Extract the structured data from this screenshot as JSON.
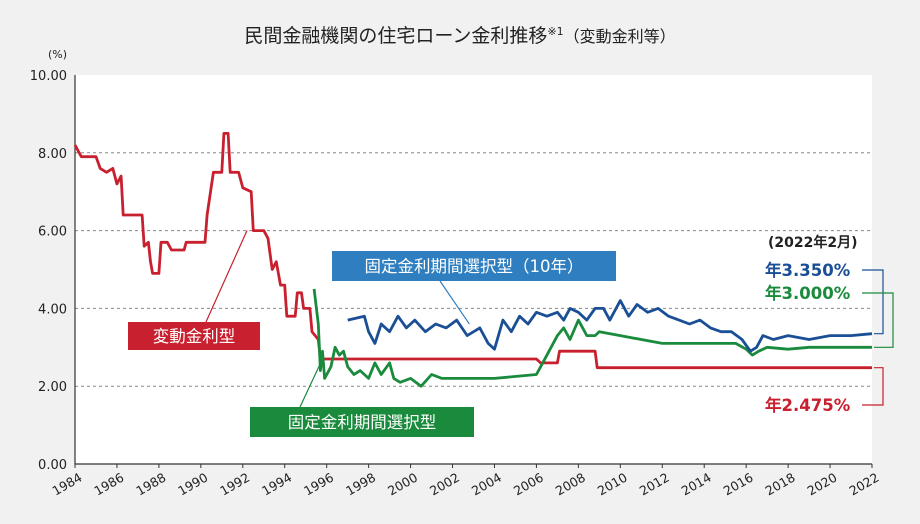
{
  "chart_data": {
    "type": "line",
    "title": "民間金融機関の住宅ローン金利推移",
    "title_note": "※1",
    "title_suffix": "（変動金利等）",
    "ylabel": "(%)",
    "ylim": [
      0,
      10
    ],
    "yticks": [
      "0.00",
      "2.00",
      "4.00",
      "6.00",
      "8.00",
      "10.00"
    ],
    "xlim": [
      1984,
      2022
    ],
    "xticks": [
      "1984",
      "1986",
      "1988",
      "1990",
      "1992",
      "1994",
      "1996",
      "1998",
      "2000",
      "2002",
      "2004",
      "2006",
      "2008",
      "2010",
      "2012",
      "2014",
      "2016",
      "2018",
      "2020",
      "2022"
    ],
    "grid": true,
    "date_label": "(2022年2月)",
    "series": [
      {
        "name": "変動金利型",
        "color": "#c8202f",
        "end_label": "年2.475%",
        "points": [
          [
            1984,
            8.2
          ],
          [
            1984.3,
            7.9
          ],
          [
            1985,
            7.9
          ],
          [
            1985.2,
            7.6
          ],
          [
            1985.5,
            7.5
          ],
          [
            1985.8,
            7.6
          ],
          [
            1986,
            7.2
          ],
          [
            1986.2,
            7.4
          ],
          [
            1986.3,
            6.4
          ],
          [
            1986.8,
            6.4
          ],
          [
            1987.2,
            6.4
          ],
          [
            1987.3,
            5.6
          ],
          [
            1987.5,
            5.7
          ],
          [
            1987.6,
            5.2
          ],
          [
            1987.7,
            4.9
          ],
          [
            1988,
            4.9
          ],
          [
            1988.1,
            5.7
          ],
          [
            1988.4,
            5.7
          ],
          [
            1988.6,
            5.5
          ],
          [
            1989.2,
            5.5
          ],
          [
            1989.3,
            5.7
          ],
          [
            1990.2,
            5.7
          ],
          [
            1990.3,
            6.4
          ],
          [
            1990.6,
            7.5
          ],
          [
            1991,
            7.5
          ],
          [
            1991.1,
            8.5
          ],
          [
            1991.3,
            8.5
          ],
          [
            1991.4,
            7.5
          ],
          [
            1991.8,
            7.5
          ],
          [
            1992,
            7.1
          ],
          [
            1992.4,
            7.0
          ],
          [
            1992.5,
            6.0
          ],
          [
            1993,
            6.0
          ],
          [
            1993.2,
            5.8
          ],
          [
            1993.4,
            5.0
          ],
          [
            1993.6,
            5.2
          ],
          [
            1993.8,
            4.6
          ],
          [
            1994,
            4.6
          ],
          [
            1994.1,
            3.8
          ],
          [
            1994.5,
            3.8
          ],
          [
            1994.6,
            4.4
          ],
          [
            1994.8,
            4.4
          ],
          [
            1994.9,
            4.0
          ],
          [
            1995.2,
            4.0
          ],
          [
            1995.3,
            3.4
          ],
          [
            1995.6,
            3.2
          ],
          [
            1995.7,
            2.7
          ],
          [
            2006,
            2.7
          ],
          [
            2006.2,
            2.6
          ],
          [
            2007,
            2.6
          ],
          [
            2007.1,
            2.9
          ],
          [
            2008.8,
            2.9
          ],
          [
            2008.9,
            2.475
          ],
          [
            2022,
            2.475
          ]
        ]
      },
      {
        "name": "固定金利期間選択型",
        "color": "#1a8a3c",
        "end_label": "年3.000%",
        "points": [
          [
            1995.4,
            4.5
          ],
          [
            1995.6,
            3.6
          ],
          [
            1995.7,
            2.4
          ],
          [
            1995.8,
            2.9
          ],
          [
            1995.9,
            2.2
          ],
          [
            1996.2,
            2.5
          ],
          [
            1996.4,
            3.0
          ],
          [
            1996.6,
            2.8
          ],
          [
            1996.8,
            2.9
          ],
          [
            1997,
            2.5
          ],
          [
            1997.3,
            2.3
          ],
          [
            1997.6,
            2.4
          ],
          [
            1998,
            2.2
          ],
          [
            1998.3,
            2.6
          ],
          [
            1998.6,
            2.3
          ],
          [
            1999,
            2.6
          ],
          [
            1999.2,
            2.2
          ],
          [
            1999.5,
            2.1
          ],
          [
            2000,
            2.2
          ],
          [
            2000.5,
            2.0
          ],
          [
            2001,
            2.3
          ],
          [
            2001.5,
            2.2
          ],
          [
            2002,
            2.2
          ],
          [
            2004,
            2.2
          ],
          [
            2006,
            2.3
          ],
          [
            2006.3,
            2.6
          ],
          [
            2006.7,
            3.0
          ],
          [
            2007,
            3.3
          ],
          [
            2007.3,
            3.5
          ],
          [
            2007.6,
            3.2
          ],
          [
            2008,
            3.7
          ],
          [
            2008.4,
            3.3
          ],
          [
            2008.8,
            3.3
          ],
          [
            2009,
            3.4
          ],
          [
            2010,
            3.3
          ],
          [
            2011,
            3.2
          ],
          [
            2012,
            3.1
          ],
          [
            2013,
            3.1
          ],
          [
            2015.5,
            3.1
          ],
          [
            2016,
            2.95
          ],
          [
            2016.3,
            2.8
          ],
          [
            2016.6,
            2.9
          ],
          [
            2017,
            3.0
          ],
          [
            2018,
            2.95
          ],
          [
            2019,
            3.0
          ],
          [
            2022,
            3.0
          ]
        ]
      },
      {
        "name": "固定金利期間選択型（10年）",
        "color": "#1a4f96",
        "end_label": "年3.350%",
        "points": [
          [
            1997,
            3.7
          ],
          [
            1997.8,
            3.8
          ],
          [
            1998,
            3.4
          ],
          [
            1998.3,
            3.1
          ],
          [
            1998.6,
            3.6
          ],
          [
            1999,
            3.4
          ],
          [
            1999.4,
            3.8
          ],
          [
            1999.8,
            3.5
          ],
          [
            2000.2,
            3.7
          ],
          [
            2000.7,
            3.4
          ],
          [
            2001.2,
            3.6
          ],
          [
            2001.7,
            3.5
          ],
          [
            2002.2,
            3.7
          ],
          [
            2002.7,
            3.3
          ],
          [
            2003.3,
            3.5
          ],
          [
            2003.7,
            3.1
          ],
          [
            2004,
            2.95
          ],
          [
            2004.4,
            3.7
          ],
          [
            2004.8,
            3.4
          ],
          [
            2005.2,
            3.8
          ],
          [
            2005.6,
            3.6
          ],
          [
            2006,
            3.9
          ],
          [
            2006.5,
            3.8
          ],
          [
            2007,
            3.9
          ],
          [
            2007.3,
            3.7
          ],
          [
            2007.6,
            4.0
          ],
          [
            2008,
            3.9
          ],
          [
            2008.4,
            3.7
          ],
          [
            2008.8,
            4.0
          ],
          [
            2009.2,
            4.0
          ],
          [
            2009.5,
            3.7
          ],
          [
            2010,
            4.2
          ],
          [
            2010.4,
            3.8
          ],
          [
            2010.8,
            4.1
          ],
          [
            2011.3,
            3.9
          ],
          [
            2011.8,
            4.0
          ],
          [
            2012.3,
            3.8
          ],
          [
            2012.8,
            3.7
          ],
          [
            2013.3,
            3.6
          ],
          [
            2013.8,
            3.7
          ],
          [
            2014.3,
            3.5
          ],
          [
            2014.8,
            3.4
          ],
          [
            2015.3,
            3.4
          ],
          [
            2015.8,
            3.2
          ],
          [
            2016.2,
            2.9
          ],
          [
            2016.5,
            3.0
          ],
          [
            2016.8,
            3.3
          ],
          [
            2017.3,
            3.2
          ],
          [
            2018,
            3.3
          ],
          [
            2019,
            3.2
          ],
          [
            2020,
            3.3
          ],
          [
            2021,
            3.3
          ],
          [
            2022,
            3.35
          ]
        ]
      }
    ],
    "annotations": [
      {
        "text": "変動金利型",
        "color": "#c8202f",
        "series": 0
      },
      {
        "text": "固定金利期間選択型",
        "color": "#1a8a3c",
        "series": 1
      },
      {
        "text": "固定金利期間選択型（10年）",
        "color": "#2f7fc0",
        "series": 2
      }
    ]
  }
}
